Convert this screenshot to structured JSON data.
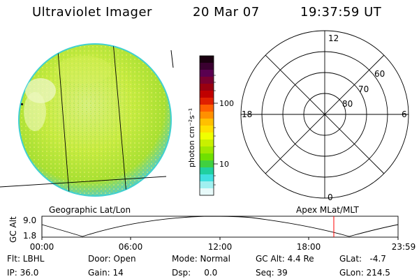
{
  "header": {
    "title": "Ultraviolet Imager",
    "date": "20 Mar 07",
    "time": "19:37:59 UT"
  },
  "colorbar": {
    "unit_label": "photon cm⁻²s⁻¹",
    "tick_high": "100",
    "tick_low": "10",
    "colors": [
      "#1a0010",
      "#3a0030",
      "#5a0050",
      "#7a0030",
      "#9a0010",
      "#c00000",
      "#e02000",
      "#ff6000",
      "#ff9000",
      "#ffc000",
      "#ffe000",
      "#f0ff00",
      "#c8f000",
      "#a0e800",
      "#70e000",
      "#40d040",
      "#20d0a0",
      "#40e0e0",
      "#a0f0f0",
      "#e8fafa"
    ]
  },
  "polar": {
    "label_top": "12",
    "label_bottom": "0",
    "label_left": "18",
    "label_right": "6",
    "ring_60": "60",
    "ring_70": "70",
    "ring_80": "80"
  },
  "timeline": {
    "left_title": "Geographic Lat/Lon",
    "right_title": "Apex MLat/MLT",
    "axis_title": "GC Alt",
    "y_top": "9.0",
    "y_bottom": "1.8",
    "x_ticks": [
      "00:00",
      "06:00",
      "12:00",
      "18:00",
      "23:59"
    ],
    "marker_color": "#ff0000"
  },
  "info": {
    "flt": "Flt: LBHL",
    "ip": "IP: 36.0",
    "door": "Door: Open",
    "gain": "Gain: 14",
    "mode": "Mode: Normal",
    "dsp": "Dsp:     0.0",
    "gcalt": "GC Alt: 4.4 Re",
    "seq": "Seq: 39",
    "glat": "GLat:   -4.7",
    "glon": "GLon: 214.5"
  }
}
